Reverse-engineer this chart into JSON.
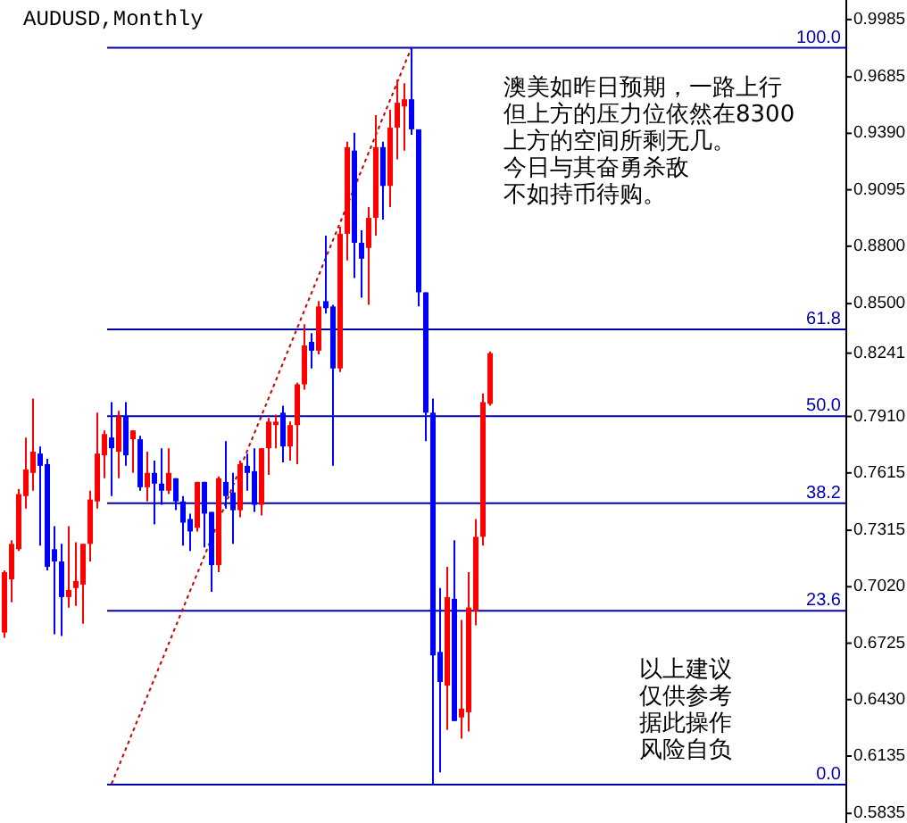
{
  "chart_data": {
    "type": "candlestick",
    "title": "AUDUSD,Monthly",
    "tick_labels": "y",
    "categories": [
      null,
      null,
      null,
      null,
      null,
      null,
      null,
      null,
      null,
      null,
      null,
      null,
      null,
      null,
      null,
      null,
      null,
      null,
      null,
      null,
      null,
      null,
      null,
      null,
      null,
      null,
      null,
      null,
      null,
      null,
      null,
      null,
      null,
      null,
      null,
      null,
      null,
      null,
      null,
      null,
      null,
      null,
      null,
      null,
      null,
      null,
      null,
      null,
      null,
      null,
      null,
      null,
      null,
      null,
      null,
      null,
      null,
      null,
      null,
      null,
      null,
      null,
      null,
      null,
      null,
      null,
      null,
      null,
      null,
      null,
      null,
      null,
      null,
      null,
      null,
      null,
      null,
      null,
      null,
      null,
      null,
      null,
      null,
      null,
      null,
      null,
      null,
      null,
      null,
      null,
      null,
      null,
      null,
      null,
      null,
      null,
      null,
      null,
      null,
      null,
      null,
      null,
      null,
      null,
      null,
      null,
      null,
      null,
      null,
      null,
      null,
      null,
      null,
      null,
      null,
      null,
      null,
      null
    ],
    "ylim": [
      0.5785,
      1.0087
    ],
    "y2lim": [
      -5.2,
      106.49
    ],
    "yticks": [
      0.9985,
      0.9685,
      {
        "value": 0.939,
        "label": "0.9390"
      },
      0.9095,
      {
        "value": 0.88,
        "label": "0.8800"
      },
      {
        "value": 0.85,
        "label": "0.8500"
      },
      0.8241,
      {
        "value": 0.791,
        "label": "0.7910"
      },
      0.7615,
      0.7315,
      {
        "value": 0.702,
        "label": "0.7020"
      },
      0.6725,
      {
        "value": 0.643,
        "label": "0.6430"
      },
      0.6135,
      0.5835
    ],
    "ohlc": [
      [
        0.6781,
        0.7105,
        0.6753,
        0.7096
      ],
      [
        0.7059,
        0.7263,
        0.6939,
        0.7244
      ],
      [
        0.7216,
        0.7531,
        0.7207,
        0.7504
      ],
      [
        0.7494,
        0.78,
        0.7429,
        0.7633
      ],
      [
        0.7615,
        0.8004,
        0.7522,
        0.7726
      ],
      [
        0.7716,
        0.7753,
        0.7235,
        0.7652
      ],
      [
        0.7661,
        0.7689,
        0.7105,
        0.7124
      ],
      [
        0.7216,
        0.7337,
        0.6772,
        0.7152
      ],
      [
        0.7152,
        0.7244,
        0.6763,
        0.6966
      ],
      [
        0.6966,
        0.7337,
        0.6911,
        0.7003
      ],
      [
        0.7013,
        0.7253,
        0.692,
        0.705
      ],
      [
        0.7031,
        0.7244,
        0.6827,
        0.7244
      ],
      [
        0.7244,
        0.7522,
        0.7152,
        0.7476
      ],
      [
        0.7466,
        0.793,
        0.7429,
        0.7716
      ],
      [
        0.7707,
        0.7837,
        0.7587,
        0.7818
      ],
      [
        0.78,
        0.7985,
        0.7494,
        0.7744
      ],
      [
        0.7726,
        0.7939,
        0.7587,
        0.7911
      ],
      [
        0.7911,
        0.7985,
        0.7652,
        0.7707
      ],
      [
        0.7791,
        0.7837,
        0.7615,
        0.7837
      ],
      [
        0.7791,
        0.7809,
        0.7522,
        0.754
      ],
      [
        0.754,
        0.7726,
        0.7466,
        0.7615
      ],
      [
        0.7615,
        0.7679,
        0.7346,
        0.7559
      ],
      [
        0.7559,
        0.7744,
        0.7448,
        0.7522
      ],
      [
        0.7522,
        0.7744,
        0.7504,
        0.7615
      ],
      [
        0.7587,
        0.7587,
        0.742,
        0.7466
      ],
      [
        0.7466,
        0.7494,
        0.7235,
        0.7355
      ],
      [
        0.7374,
        0.7402,
        0.7207,
        0.7309
      ],
      [
        0.7328,
        0.7568,
        0.7309,
        0.7568
      ],
      [
        0.7568,
        0.7568,
        0.7226,
        0.7402
      ],
      [
        0.7411,
        0.7411,
        0.6994,
        0.7133
      ],
      [
        0.7133,
        0.7596,
        0.7096,
        0.7587
      ],
      [
        0.7568,
        0.7781,
        0.7429,
        0.7494
      ],
      [
        0.7513,
        0.7615,
        0.7244,
        0.742
      ],
      [
        0.742,
        0.7679,
        0.7383,
        0.7661
      ],
      [
        0.7652,
        0.7716,
        0.7522,
        0.7615
      ],
      [
        0.7624,
        0.7744,
        0.7411,
        0.7448
      ],
      [
        0.7448,
        0.7744,
        0.7392,
        0.7744
      ],
      [
        0.7744,
        0.7902,
        0.7605,
        0.7883
      ],
      [
        0.7865,
        0.792,
        0.7744,
        0.7883
      ],
      [
        0.793,
        0.7966,
        0.767,
        0.7753
      ],
      [
        0.7753,
        0.7883,
        0.7679,
        0.7865
      ],
      [
        0.7865,
        0.8087,
        0.7661,
        0.8078
      ],
      [
        0.8078,
        0.8392,
        0.805,
        0.8281
      ],
      [
        0.83,
        0.8346,
        0.8161,
        0.8254
      ],
      [
        0.8254,
        0.8513,
        0.8235,
        0.8485
      ],
      [
        0.8513,
        0.8855,
        0.8448,
        0.8476
      ],
      [
        0.8485,
        0.8494,
        0.7652,
        0.8161
      ],
      [
        0.8161,
        0.8902,
        0.8142,
        0.8865
      ],
      [
        0.8865,
        0.9346,
        0.8726,
        0.9318
      ],
      [
        0.93,
        0.9393,
        0.8633,
        0.8818
      ],
      [
        0.8818,
        0.8883,
        0.8531,
        0.8735
      ],
      [
        0.8791,
        0.9004,
        0.8494,
        0.8948
      ],
      [
        0.8948,
        0.9485,
        0.8855,
        0.9318
      ],
      [
        0.9318,
        0.9346,
        0.8939,
        0.9115
      ],
      [
        0.9115,
        0.9513,
        0.9004,
        0.942
      ],
      [
        0.942,
        0.967,
        0.9254,
        0.955
      ],
      [
        0.9531,
        0.9652,
        0.93,
        0.9568
      ],
      [
        0.9568,
        0.9837,
        0.9383,
        0.9411
      ],
      [
        0.9411,
        0.9411,
        0.8485,
        0.8559
      ],
      [
        0.8559,
        0.8559,
        0.7781,
        0.793
      ],
      [
        0.793,
        0.8004,
        0.5985,
        0.6661
      ],
      [
        0.6679,
        0.7013,
        0.605,
        0.6522
      ],
      [
        0.6503,
        0.7124,
        0.6272,
        0.6966
      ],
      [
        0.6957,
        0.7263,
        0.6318,
        0.6318
      ],
      [
        0.6337,
        0.6846,
        0.6226,
        0.6383
      ],
      [
        0.6364,
        0.7096,
        0.6263,
        0.6911
      ],
      [
        0.6892,
        0.7374,
        0.6818,
        0.7281
      ],
      [
        0.7281,
        0.8031,
        0.7235,
        0.7985
      ],
      [
        0.7976,
        0.825,
        0.7966,
        0.8241
      ],
      null,
      null,
      null,
      null,
      null,
      null,
      null,
      null,
      null,
      null,
      null,
      null,
      null,
      null,
      null,
      null,
      null,
      null,
      null,
      null,
      null,
      null,
      null,
      null,
      null,
      null,
      null,
      null,
      null,
      null,
      null,
      null,
      null,
      null,
      null,
      null,
      null,
      null,
      null,
      null,
      null,
      null,
      null,
      null,
      null,
      null,
      null,
      null,
      null
    ],
    "colors": [
      "#ff0000",
      "#ff0000",
      "#ff0000",
      "#ff0000",
      "#ff0000",
      "#0000ff",
      "#0000ff",
      "#0000ff",
      "#0000ff",
      "#ff0000",
      "#ff0000",
      "#ff0000",
      "#ff0000",
      "#ff0000",
      "#ff0000",
      "#0000ff",
      "#ff0000",
      "#0000ff",
      "#ff0000",
      "#0000ff",
      "#ff0000",
      "#0000ff",
      "#0000ff",
      "#ff0000",
      "#0000ff",
      "#0000ff",
      "#0000ff",
      "#ff0000",
      "#0000ff",
      "#0000ff",
      "#ff0000",
      "#0000ff",
      "#0000ff",
      "#ff0000",
      "#0000ff",
      "#0000ff",
      "#ff0000",
      "#ff0000",
      "#ff0000",
      "#0000ff",
      "#ff0000",
      "#ff0000",
      "#ff0000",
      "#0000ff",
      "#ff0000",
      "#0000ff",
      "#0000ff",
      "#ff0000",
      "#ff0000",
      "#0000ff",
      "#0000ff",
      "#ff0000",
      "#ff0000",
      "#0000ff",
      "#ff0000",
      "#ff0000",
      "#ff0000",
      "#0000ff",
      "#0000ff",
      "#0000ff",
      "#0000ff",
      "#0000ff",
      "#ff0000",
      "#0000ff",
      "#ff0000",
      "#ff0000",
      "#ff0000",
      "#ff0000",
      "#ff0000",
      null,
      null,
      null,
      null,
      null,
      null,
      null,
      null,
      null,
      null,
      null,
      null,
      null,
      null,
      null,
      null,
      null,
      null,
      null,
      null,
      null,
      null,
      null,
      null,
      null,
      null,
      null,
      null,
      null,
      null,
      null,
      null,
      null,
      null,
      null,
      null,
      null,
      null,
      null,
      null,
      null,
      null,
      null,
      null,
      null,
      null,
      null,
      null,
      null
    ],
    "series": [
      {
        "type": "line",
        "values": [
          null,
          null,
          null,
          null,
          null,
          null,
          null,
          null,
          null,
          null,
          null,
          null,
          null,
          null,
          null,
          0.599,
          null,
          null,
          null,
          null,
          null,
          null,
          null,
          null,
          null,
          null,
          null,
          null,
          null,
          null,
          null,
          null,
          null,
          null,
          null,
          null,
          null,
          null,
          null,
          null,
          null,
          null,
          null,
          null,
          null,
          null,
          null,
          null,
          null,
          null,
          null,
          null,
          null,
          null,
          null,
          null,
          null,
          0.984,
          null,
          null,
          null,
          null,
          null,
          null,
          null,
          null,
          null,
          null,
          null,
          null,
          null,
          null,
          null,
          null,
          null,
          null,
          null,
          null,
          null,
          null,
          null,
          null,
          null,
          null,
          null,
          null,
          null,
          null,
          null,
          null,
          null,
          null,
          null,
          null,
          null,
          null,
          null,
          null,
          null,
          null,
          null,
          null,
          null,
          null,
          null,
          null,
          null,
          null,
          null,
          null,
          null,
          null,
          null,
          null,
          null,
          null,
          null,
          null
        ],
        "color": "#cc0000",
        "line_style": "dotted"
      }
    ],
    "ref_lines": [
      {
        "axis": "y2",
        "value": 100,
        "label": "100.0",
        "color": "#0000b0"
      },
      {
        "axis": "y2",
        "value": 61.8,
        "label": "61.8",
        "color": "#0000b0"
      },
      {
        "axis": "y2",
        "value": 50,
        "label": "50.0",
        "color": "#0000b0"
      },
      {
        "axis": "y2",
        "value": 38.2,
        "label": "38.2",
        "color": "#0000b0"
      },
      {
        "axis": "y2",
        "value": 23.6,
        "label": "23.6",
        "color": "#0000b0"
      },
      {
        "axis": "y2",
        "value": 0,
        "label": "0.0",
        "color": "#0000b0"
      }
    ],
    "annotations": [
      "澳美如昨日预期，一路上行但上方的压力位依然在8300上方的空间所剩无几。",
      "今日与其奋勇杀敌不如持币待购。",
      "以上建议仅供参考据此操作风险自负"
    ]
  }
}
